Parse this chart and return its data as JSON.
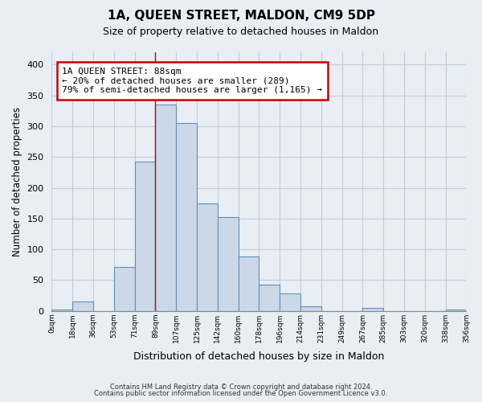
{
  "title": "1A, QUEEN STREET, MALDON, CM9 5DP",
  "subtitle": "Size of property relative to detached houses in Maldon",
  "xlabel": "Distribution of detached houses by size in Maldon",
  "ylabel": "Number of detached properties",
  "bar_color": "#cad8e8",
  "bar_edge_color": "#6090b8",
  "background_color": "#e8eef4",
  "plot_bg_color": "#e8eef4",
  "grid_color": "#c0ccd8",
  "tick_labels": [
    "0sqm",
    "18sqm",
    "36sqm",
    "53sqm",
    "71sqm",
    "89sqm",
    "107sqm",
    "125sqm",
    "142sqm",
    "160sqm",
    "178sqm",
    "196sqm",
    "214sqm",
    "231sqm",
    "249sqm",
    "267sqm",
    "285sqm",
    "303sqm",
    "320sqm",
    "338sqm",
    "356sqm"
  ],
  "bar_values": [
    2,
    15,
    0,
    72,
    243,
    335,
    305,
    175,
    153,
    88,
    43,
    28,
    7,
    0,
    0,
    5,
    0,
    0,
    0,
    2
  ],
  "ylim": [
    0,
    420
  ],
  "yticks": [
    0,
    50,
    100,
    150,
    200,
    250,
    300,
    350,
    400
  ],
  "property_line_x": 5.0,
  "annotation_text": "1A QUEEN STREET: 88sqm\n← 20% of detached houses are smaller (289)\n79% of semi-detached houses are larger (1,165) →",
  "annotation_box_color": "#ffffff",
  "annotation_border_color": "#cc0000",
  "footnote1": "Contains HM Land Registry data © Crown copyright and database right 2024.",
  "footnote2": "Contains public sector information licensed under the Open Government Licence v3.0."
}
